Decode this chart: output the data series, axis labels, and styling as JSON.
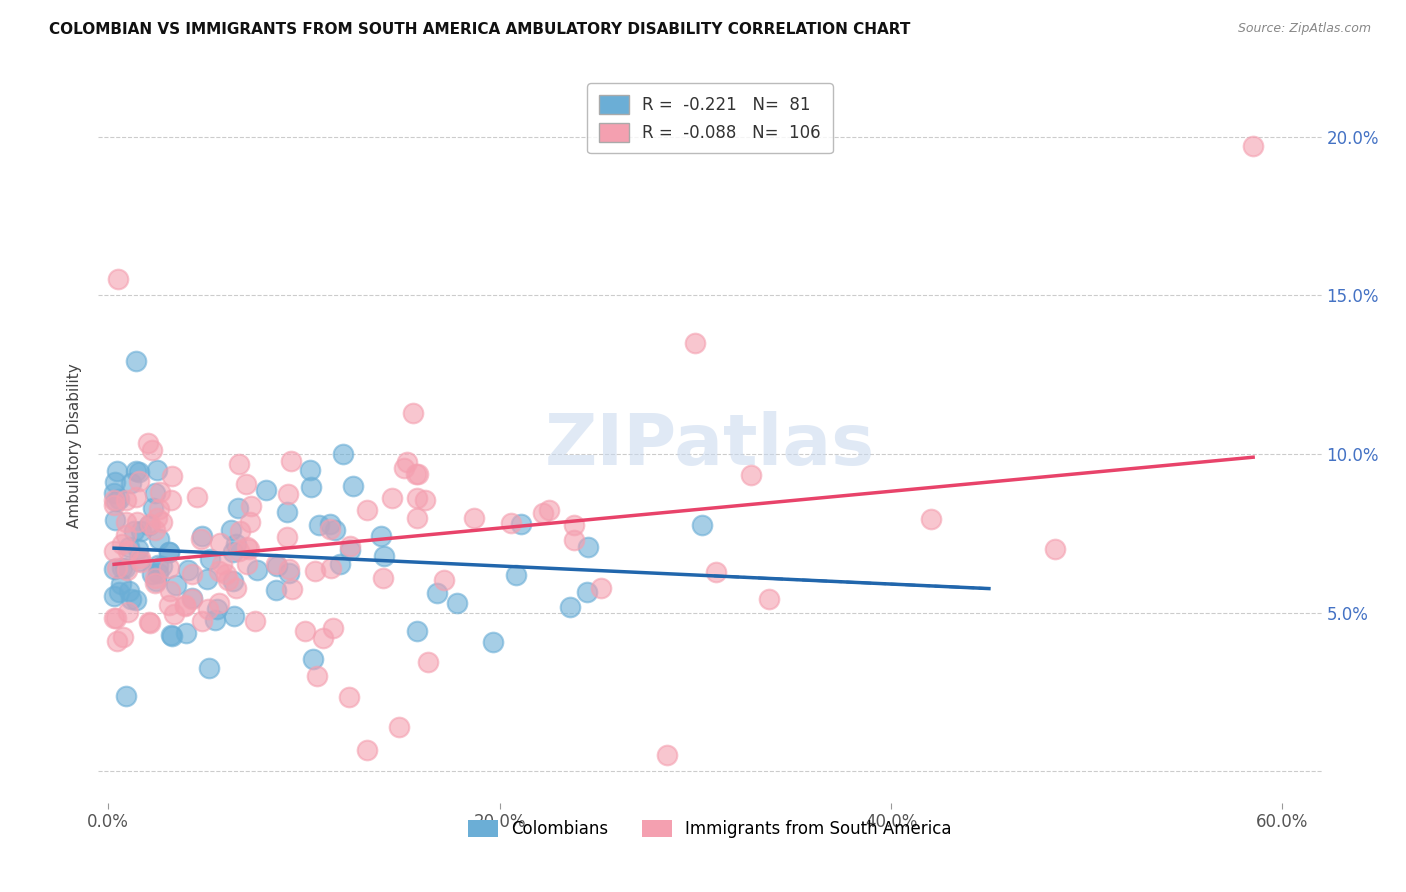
{
  "title": "COLOMBIAN VS IMMIGRANTS FROM SOUTH AMERICA AMBULATORY DISABILITY CORRELATION CHART",
  "source": "Source: ZipAtlas.com",
  "ylabel": "Ambulatory Disability",
  "legend_colombians": "Colombians",
  "legend_immigrants": "Immigrants from South America",
  "colombian_R": -0.221,
  "colombian_N": 81,
  "immigrant_R": -0.088,
  "immigrant_N": 106,
  "xlim": [
    -0.005,
    0.62
  ],
  "ylim": [
    -0.01,
    0.215
  ],
  "yticks": [
    0.0,
    0.05,
    0.1,
    0.15,
    0.2
  ],
  "xtick_vals": [
    0.0,
    0.2,
    0.4,
    0.6
  ],
  "xtick_labels": [
    "0.0%",
    "20.0%",
    "40.0%",
    "60.0%"
  ],
  "ytick_labels_right": [
    "",
    "5.0%",
    "10.0%",
    "15.0%",
    "20.0%"
  ],
  "color_colombian": "#6baed6",
  "color_immigrant": "#f4a0b0",
  "trendline_colombian": "#2166ac",
  "trendline_immigrant": "#e8436a",
  "background_color": "#ffffff",
  "watermark": "ZIPatlas",
  "legend_R1": "R = ",
  "legend_R1_val": "-0.221",
  "legend_N1_val": "81",
  "legend_R2_val": "-0.088",
  "legend_N2_val": "106"
}
